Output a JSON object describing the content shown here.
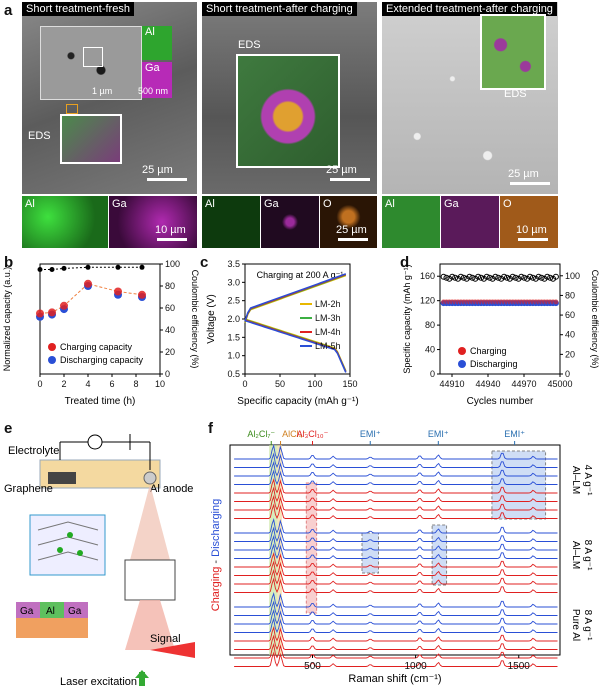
{
  "panel_labels": {
    "a": "a",
    "b": "b",
    "c": "c",
    "d": "d",
    "e": "e",
    "f": "f"
  },
  "panel_a": {
    "img1": {
      "title": "Short treatment-fresh",
      "eds": "EDS",
      "inset_al": "Al",
      "inset_ga": "Ga",
      "scale_small1": "1 µm",
      "scale_small2": "500 nm",
      "scale": "25 µm"
    },
    "img2": {
      "title": "Short treatment-after charging",
      "eds": "EDS",
      "scale": "25 µm"
    },
    "img3": {
      "title": "Extended treatment-after charging",
      "eds": "EDS",
      "scale": "25 µm"
    },
    "maps1": {
      "al": "Al",
      "ga": "Ga",
      "scale": "10 µm"
    },
    "maps2": {
      "al": "Al",
      "ga": "Ga",
      "o": "O",
      "scale": "25 µm"
    },
    "maps3": {
      "al": "Al",
      "ga": "Ga",
      "o": "O",
      "scale": "10 µm"
    }
  },
  "chart_b": {
    "type": "scatter",
    "xlabel": "Treated time (h)",
    "ylabel": "Normalized capacity (a.u.)",
    "y2label": "Coulombic efficiency (%)",
    "xticks": [
      "0",
      "2",
      "4",
      "6",
      "8",
      "10"
    ],
    "y2ticks": [
      "0",
      "20",
      "40",
      "60",
      "80",
      "100"
    ],
    "legend": [
      "Charging capacity",
      "Discharging capacity"
    ],
    "x": [
      0,
      1,
      2,
      4,
      6.5,
      8.5
    ],
    "charging": [
      55,
      56,
      62,
      82,
      75,
      72
    ],
    "discharging": [
      52,
      54,
      59,
      80,
      72,
      70
    ],
    "ce": [
      95,
      95,
      96,
      97,
      97,
      97
    ]
  },
  "chart_c": {
    "type": "line",
    "annotation": "Charging at 200 A g⁻¹",
    "xlabel": "Specific capacity (mAh g⁻¹)",
    "ylabel": "Voltage (V)",
    "xticks": [
      "0",
      "50",
      "100",
      "150"
    ],
    "yticks": [
      "0.5",
      "1.0",
      "1.5",
      "2.0",
      "2.5",
      "3.0",
      "3.5"
    ],
    "series": [
      {
        "name": "LM-2h",
        "color": "#e8b800"
      },
      {
        "name": "LM-3h",
        "color": "#3cb043"
      },
      {
        "name": "LM-4h",
        "color": "#e02020"
      },
      {
        "name": "LM-5h",
        "color": "#2a4fd6"
      }
    ]
  },
  "chart_d": {
    "type": "scatter",
    "xlabel": "Cycles number",
    "ylabel": "Specific capacity (mAh g⁻¹)",
    "y2label": "Coulombic efficiency (%)",
    "xticks": [
      "44910",
      "44940",
      "44970",
      "45000"
    ],
    "yticks": [
      "0",
      "40",
      "80",
      "120",
      "160"
    ],
    "y2ticks": [
      "0",
      "20",
      "40",
      "60",
      "80",
      "100"
    ],
    "legend": [
      "Charging",
      "Discharging"
    ]
  },
  "panel_e": {
    "electrolyte": "Electrolyte",
    "graphene": "Graphene",
    "anode": "Al anode",
    "signal": "Signal",
    "laser": "Laser excitation",
    "ga1": "Ga",
    "al": "Al",
    "ga2": "Ga"
  },
  "chart_f": {
    "type": "line",
    "xlabel": "Raman shift (cm⁻¹)",
    "xticks": [
      "500",
      "1000",
      "1500"
    ],
    "ylabel_charge": "Charging",
    "ylabel_sep": " - ",
    "ylabel_discharge": "Discharging",
    "species": [
      "Al₂Cl₇⁻",
      "AlCl₄⁻",
      "Al₃Cl₁₀⁻",
      "EMI⁺",
      "EMI⁺",
      "EMI⁺"
    ],
    "groups": [
      "Al–LM\n4 A g⁻¹",
      "Al–LM\n8 A g⁻¹",
      "Pure Al\n8 A g⁻¹"
    ],
    "group1": "Al–LM",
    "group1b": "4 A g⁻¹",
    "group2": "Al–LM",
    "group2b": "8 A g⁻¹",
    "group3": "Pure Al",
    "group3b": "8 A g⁻¹"
  }
}
